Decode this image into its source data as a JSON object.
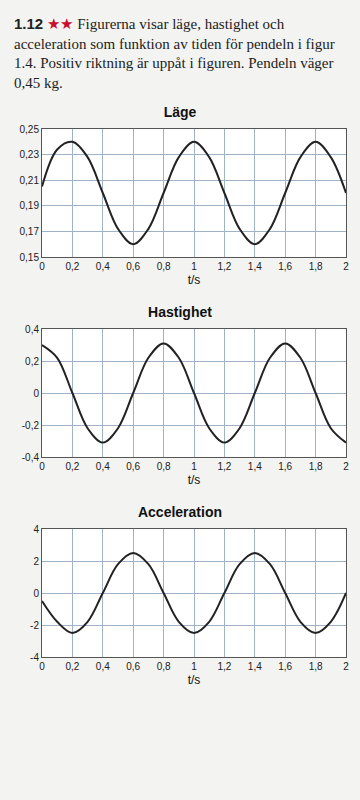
{
  "problem": {
    "number": "1.12",
    "stars": "★★",
    "text": "Figurerna visar läge, hastighet och acceleration som funktion av tiden för pendeln i figur 1.4. Positiv riktning är uppåt i figuren. Pendeln väger 0,45 kg."
  },
  "chart_data": [
    {
      "type": "line",
      "title": "Läge",
      "x_label": "t/s",
      "color": "#222222",
      "grid": true,
      "x": [
        0,
        0.1,
        0.2,
        0.3,
        0.4,
        0.5,
        0.6,
        0.7,
        0.8,
        0.9,
        1.0,
        1.1,
        1.2,
        1.3,
        1.4,
        1.5,
        1.6,
        1.7,
        1.8,
        1.9,
        2.0
      ],
      "values": [
        0.205,
        0.234,
        0.24,
        0.228,
        0.2,
        0.172,
        0.16,
        0.172,
        0.2,
        0.228,
        0.24,
        0.228,
        0.2,
        0.172,
        0.16,
        0.172,
        0.2,
        0.228,
        0.24,
        0.228,
        0.2
      ],
      "xlim": [
        0,
        2
      ],
      "ylim": [
        0.15,
        0.25
      ],
      "xticks": [
        0,
        {
          "value": 0.2,
          "label": "0,2"
        },
        {
          "value": 0.4,
          "label": "0,4"
        },
        {
          "value": 0.6,
          "label": "0,6"
        },
        {
          "value": 0.8,
          "label": "0,8"
        },
        1,
        {
          "value": 1.2,
          "label": "1,2"
        },
        {
          "value": 1.4,
          "label": "1,4"
        },
        {
          "value": 1.6,
          "label": "1,6"
        },
        {
          "value": 1.8,
          "label": "1,8"
        },
        2
      ],
      "yticks": [
        {
          "value": 0.15,
          "label": "0,15"
        },
        {
          "value": 0.17,
          "label": "0,17"
        },
        {
          "value": 0.19,
          "label": "0,19"
        },
        {
          "value": 0.21,
          "label": "0,21"
        },
        {
          "value": 0.23,
          "label": "0,23"
        },
        {
          "value": 0.25,
          "label": "0,25"
        }
      ]
    },
    {
      "type": "line",
      "title": "Hastighet",
      "x_label": "t/s",
      "color": "#222222",
      "grid": true,
      "x": [
        0,
        0.1,
        0.2,
        0.3,
        0.4,
        0.5,
        0.6,
        0.7,
        0.8,
        0.9,
        1.0,
        1.1,
        1.2,
        1.3,
        1.4,
        1.5,
        1.6,
        1.7,
        1.8,
        1.9,
        2.0
      ],
      "values": [
        0.3,
        0.22,
        0,
        -0.22,
        -0.31,
        -0.22,
        0,
        0.22,
        0.31,
        0.22,
        0,
        -0.22,
        -0.31,
        -0.22,
        0,
        0.22,
        0.31,
        0.22,
        0,
        -0.22,
        -0.31
      ],
      "xlim": [
        0,
        2
      ],
      "ylim": [
        -0.4,
        0.4
      ],
      "xticks": [
        0,
        {
          "value": 0.2,
          "label": "0,2"
        },
        {
          "value": 0.4,
          "label": "0,4"
        },
        {
          "value": 0.6,
          "label": "0,6"
        },
        {
          "value": 0.8,
          "label": "0,8"
        },
        1,
        {
          "value": 1.2,
          "label": "1,2"
        },
        {
          "value": 1.4,
          "label": "1,4"
        },
        {
          "value": 1.6,
          "label": "1,6"
        },
        {
          "value": 1.8,
          "label": "1,8"
        },
        2
      ],
      "yticks": [
        {
          "value": -0.4,
          "label": "-0,4"
        },
        {
          "value": -0.2,
          "label": "-0,2"
        },
        0,
        {
          "value": 0.2,
          "label": "0,2"
        },
        {
          "value": 0.4,
          "label": "0,4"
        }
      ]
    },
    {
      "type": "line",
      "title": "Acceleration",
      "x_label": "t/s",
      "color": "#222222",
      "grid": true,
      "x": [
        0,
        0.1,
        0.2,
        0.3,
        0.4,
        0.5,
        0.6,
        0.7,
        0.8,
        0.9,
        1.0,
        1.1,
        1.2,
        1.3,
        1.4,
        1.5,
        1.6,
        1.7,
        1.8,
        1.9,
        2.0
      ],
      "values": [
        -0.5,
        -1.8,
        -2.5,
        -1.8,
        0,
        1.8,
        2.5,
        1.8,
        0,
        -1.8,
        -2.5,
        -1.8,
        0,
        1.8,
        2.5,
        1.8,
        0,
        -1.8,
        -2.5,
        -1.8,
        0
      ],
      "xlim": [
        0,
        2
      ],
      "ylim": [
        -4,
        4
      ],
      "xticks": [
        0,
        {
          "value": 0.2,
          "label": "0,2"
        },
        {
          "value": 0.4,
          "label": "0,4"
        },
        {
          "value": 0.6,
          "label": "0,6"
        },
        {
          "value": 0.8,
          "label": "0,8"
        },
        1,
        {
          "value": 1.2,
          "label": "1,2"
        },
        {
          "value": 1.4,
          "label": "1,4"
        },
        {
          "value": 1.6,
          "label": "1,6"
        },
        {
          "value": 1.8,
          "label": "1,8"
        },
        2
      ],
      "yticks": [
        -4,
        -2,
        0,
        2,
        4
      ]
    }
  ]
}
